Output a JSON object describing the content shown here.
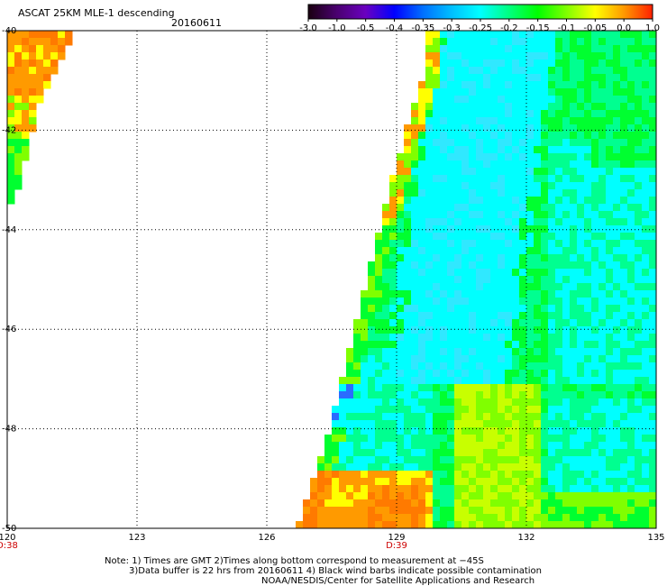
{
  "header": {
    "title": "ASCAT 25KM MLE-1 descending",
    "date": "20160611"
  },
  "colorbar": {
    "labels": [
      "-3.0",
      "-1.0",
      "-0.5",
      "-0.4",
      "-0.35",
      "-0.3",
      "-0.25",
      "-0.2",
      "-0.15",
      "-0.1",
      "-0.05",
      "0.0",
      "1.0"
    ],
    "colors": [
      "#1a0010",
      "#4a0070",
      "#6a00c0",
      "#0000ff",
      "#0070ff",
      "#00bfff",
      "#00ffff",
      "#00ff80",
      "#00ff00",
      "#80ff00",
      "#ffff00",
      "#ff9900",
      "#ff2000"
    ]
  },
  "map": {
    "lon_labels": [
      "120",
      "123",
      "126",
      "129",
      "132",
      "135"
    ],
    "lat_labels": [
      "-40",
      "-42",
      "-44",
      "-46",
      "-48",
      "-50"
    ],
    "lon_range": [
      120,
      135
    ],
    "lat_range": [
      -40,
      -50
    ],
    "time_labels": [
      {
        "lon": 120,
        "text": "D:38"
      },
      {
        "lon": 129,
        "text": "D:39"
      }
    ],
    "time_color": "#cc0000"
  },
  "notes": {
    "line1": "Note: 1) Times are GMT 2)Times along bottom correspond to measurement at −45S",
    "line2": "3)Data buffer is 22 hrs from 20160611 4) Black wind barbs indicate possible contamination",
    "line3": "NOAA/NESDIS/Center for Satellite Applications and Research"
  }
}
